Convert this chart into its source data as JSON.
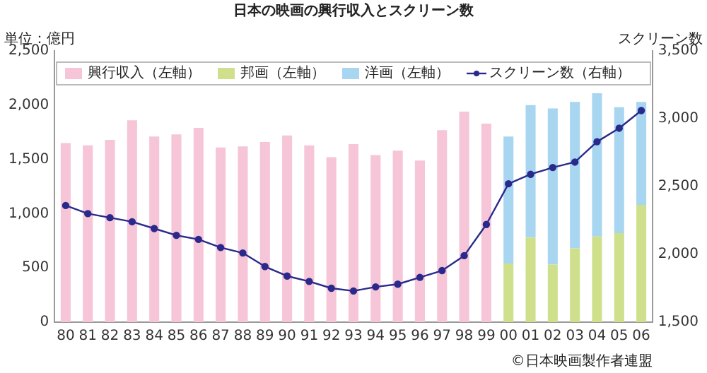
{
  "chart_data": {
    "type": "bar",
    "title": "日本の映画の興行収入とスクリーン数",
    "ylabel": "単位：億円",
    "y2label": "スクリーン数",
    "categories": [
      "80",
      "81",
      "82",
      "83",
      "84",
      "85",
      "86",
      "87",
      "88",
      "89",
      "90",
      "91",
      "92",
      "93",
      "94",
      "95",
      "96",
      "97",
      "98",
      "99",
      "00",
      "01",
      "02",
      "03",
      "04",
      "05",
      "06"
    ],
    "stacked": true,
    "series": [
      {
        "name": "興行収入（左軸）",
        "color": "#f6c5d8",
        "values": [
          1650,
          1630,
          1680,
          1860,
          1710,
          1730,
          1790,
          1610,
          1620,
          1660,
          1720,
          1630,
          1520,
          1640,
          1540,
          1580,
          1490,
          1770,
          1940,
          1830,
          null,
          null,
          null,
          null,
          null,
          null,
          null
        ]
      },
      {
        "name": "邦画（左軸）",
        "color": "#cfe08c",
        "values": [
          null,
          null,
          null,
          null,
          null,
          null,
          null,
          null,
          null,
          null,
          null,
          null,
          null,
          null,
          null,
          null,
          null,
          null,
          null,
          null,
          540,
          780,
          530,
          680,
          790,
          820,
          1080
        ]
      },
      {
        "name": "洋画（左軸）",
        "color": "#a8d6f0",
        "values": [
          null,
          null,
          null,
          null,
          null,
          null,
          null,
          null,
          null,
          null,
          null,
          null,
          null,
          null,
          null,
          null,
          null,
          null,
          null,
          null,
          1170,
          1220,
          1440,
          1350,
          1320,
          1160,
          950
        ]
      },
      {
        "name": "スクリーン数（右軸）",
        "type": "line",
        "axis": "y2",
        "color": "#2a2a8c",
        "values": [
          2360,
          2300,
          2270,
          2240,
          2190,
          2140,
          2110,
          2050,
          2010,
          1910,
          1840,
          1800,
          1750,
          1730,
          1760,
          1780,
          1830,
          1880,
          1990,
          2220,
          2520,
          2590,
          2640,
          2680,
          2830,
          2930,
          3060
        ]
      }
    ],
    "ylim": [
      0,
      2500
    ],
    "yticks": [
      0,
      500,
      {
        "value": 1000,
        "label": "1,000"
      },
      {
        "value": 1500,
        "label": "1,500"
      },
      {
        "value": 2000,
        "label": "2,000"
      },
      {
        "value": 2500,
        "label": "2,500"
      }
    ],
    "y2lim": [
      1500,
      3500
    ],
    "y2ticks": [
      {
        "value": 1500,
        "label": "1,500"
      },
      {
        "value": 2000,
        "label": "2,000"
      },
      {
        "value": 2500,
        "label": "2,500"
      },
      {
        "value": 3000,
        "label": "3,000"
      },
      {
        "value": 3500,
        "label": "3,500"
      }
    ],
    "legend": "top",
    "marker": "circle",
    "line_style": "solid",
    "annotations": [
      "©日本映画製作者連盟"
    ]
  }
}
